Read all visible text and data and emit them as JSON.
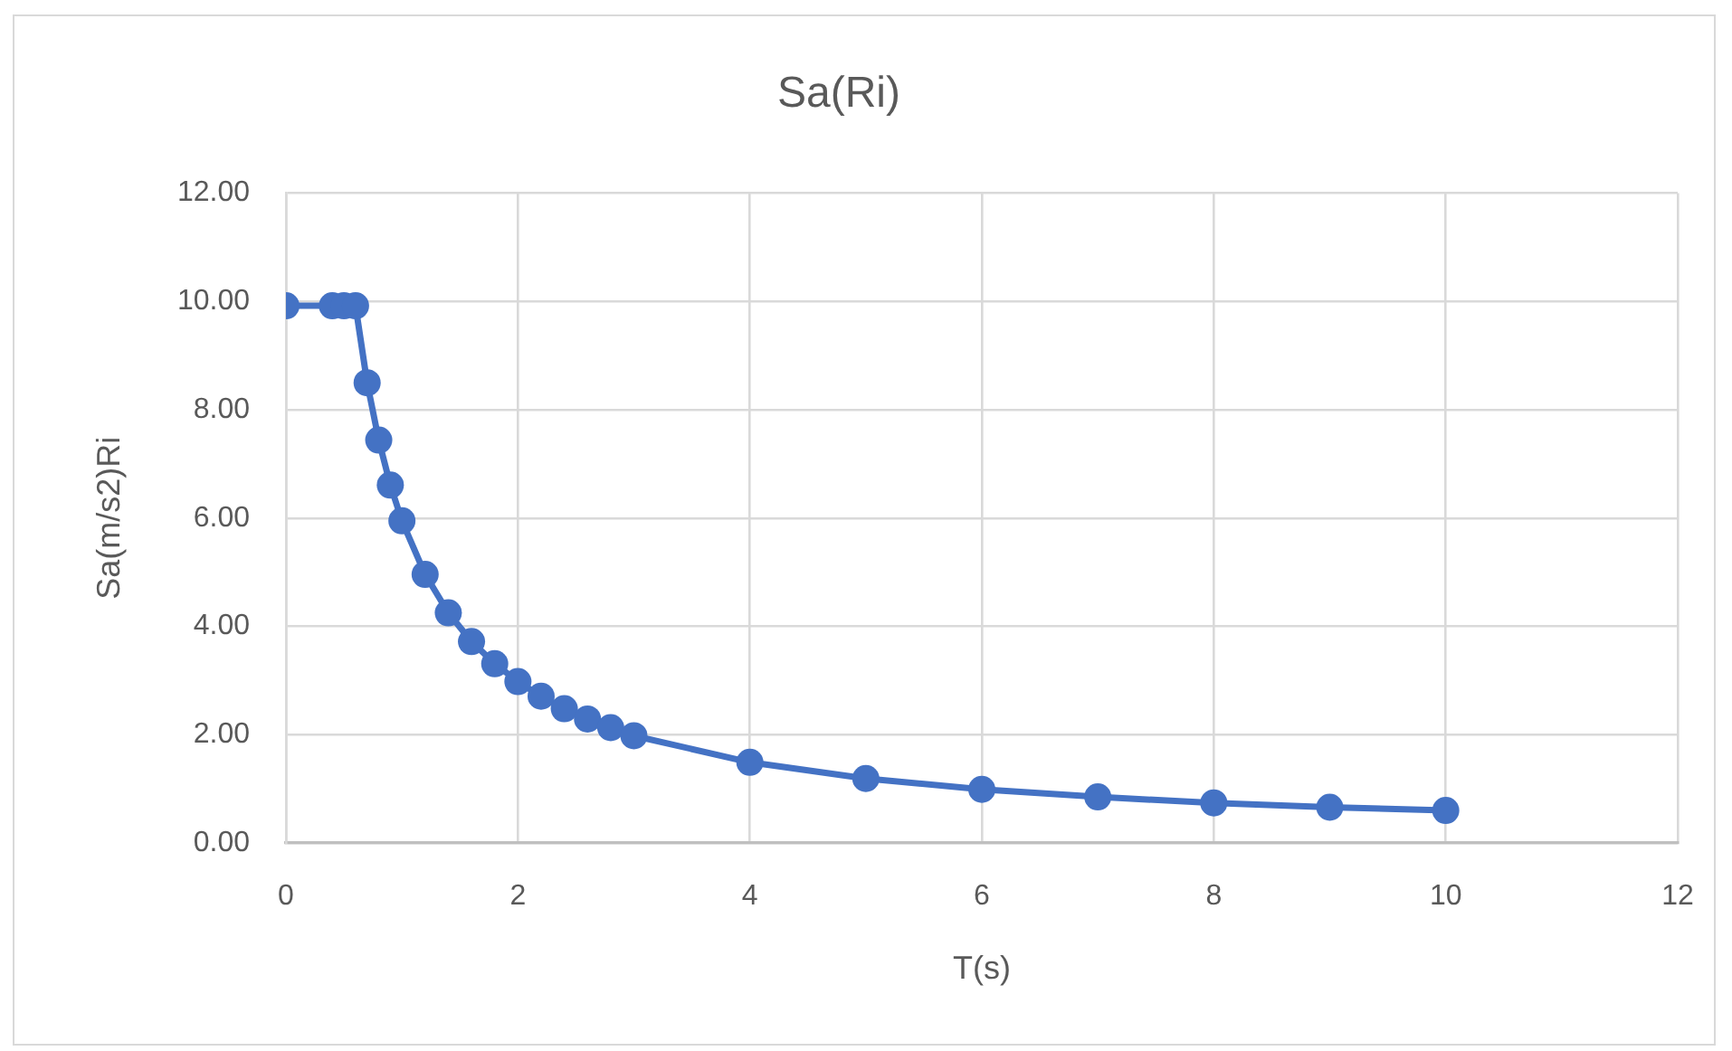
{
  "chart_data": {
    "type": "line",
    "title": "Sa(Ri)",
    "xlabel": "T(s)",
    "ylabel": "Sa(m/s2)Ri",
    "x": [
      0,
      0.4,
      0.5,
      0.6,
      0.7,
      0.8,
      0.9,
      1,
      1.2,
      1.4,
      1.6,
      1.8,
      2,
      2.2,
      2.4,
      2.6,
      2.8,
      3,
      4,
      5,
      6,
      7,
      8,
      9,
      10
    ],
    "values": [
      9.92,
      9.92,
      9.92,
      9.92,
      8.5,
      7.44,
      6.61,
      5.95,
      4.96,
      4.25,
      3.72,
      3.31,
      2.98,
      2.71,
      2.48,
      2.29,
      2.13,
      1.98,
      1.49,
      1.19,
      0.99,
      0.85,
      0.74,
      0.66,
      0.6
    ],
    "color": "#4472c4",
    "xlim": [
      0,
      12
    ],
    "xticks": [
      0,
      2,
      4,
      6,
      8,
      10,
      12
    ],
    "ylim": [
      0,
      12
    ],
    "yticks": [
      {
        "value": 0,
        "label": "0.00"
      },
      {
        "value": 2,
        "label": "2.00"
      },
      {
        "value": 4,
        "label": "4.00"
      },
      {
        "value": 6,
        "label": "6.00"
      },
      {
        "value": 8,
        "label": "8.00"
      },
      {
        "value": 10,
        "label": "10.00"
      },
      {
        "value": 12,
        "label": "12.00"
      }
    ],
    "grid": true,
    "marker": "circle",
    "line_style": "solid"
  }
}
